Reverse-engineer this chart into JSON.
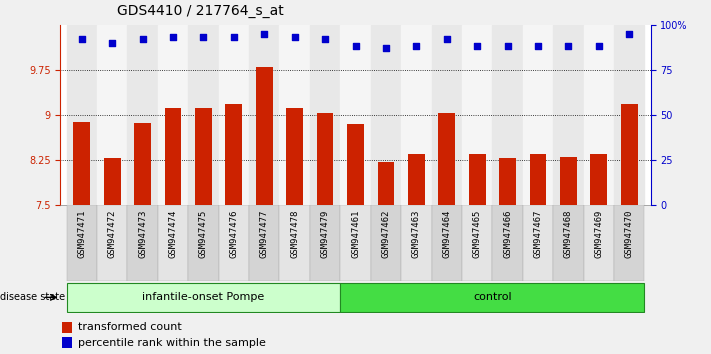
{
  "title": "GDS4410 / 217764_s_at",
  "samples": [
    "GSM947471",
    "GSM947472",
    "GSM947473",
    "GSM947474",
    "GSM947475",
    "GSM947476",
    "GSM947477",
    "GSM947478",
    "GSM947479",
    "GSM947461",
    "GSM947462",
    "GSM947463",
    "GSM947464",
    "GSM947465",
    "GSM947466",
    "GSM947467",
    "GSM947468",
    "GSM947469",
    "GSM947470"
  ],
  "bar_values": [
    8.88,
    8.28,
    8.87,
    9.12,
    9.12,
    9.18,
    9.8,
    9.12,
    9.04,
    8.85,
    8.22,
    8.35,
    9.04,
    8.35,
    8.28,
    8.35,
    8.3,
    8.35,
    9.18
  ],
  "dot_values": [
    92,
    90,
    92,
    93,
    93,
    93,
    95,
    93,
    92,
    88,
    87,
    88,
    92,
    88,
    88,
    88,
    88,
    88,
    95
  ],
  "ylim_left": [
    7.5,
    10.5
  ],
  "ylim_right": [
    0,
    100
  ],
  "yticks_left": [
    7.5,
    8.25,
    9.0,
    9.75
  ],
  "ytick_labels_left": [
    "7.5",
    "8.25",
    "9",
    "9.75"
  ],
  "yticks_right": [
    0,
    25,
    50,
    75,
    100
  ],
  "ytick_labels_right": [
    "0",
    "25",
    "50",
    "75",
    "100%"
  ],
  "bar_color": "#cc2200",
  "dot_color": "#0000cc",
  "group1_label": "infantile-onset Pompe",
  "group2_label": "control",
  "group1_count": 9,
  "group2_count": 10,
  "group1_color": "#ccffcc",
  "group2_color": "#44dd44",
  "group_border_color": "#228822",
  "disease_state_label": "disease state",
  "legend_bar_label": "transformed count",
  "legend_dot_label": "percentile rank within the sample",
  "bg_color": "#f0f0f0",
  "plot_bg": "#ffffff",
  "grid_color": "#000000",
  "title_fontsize": 10,
  "tick_fontsize": 7,
  "sample_fontsize": 6.5
}
